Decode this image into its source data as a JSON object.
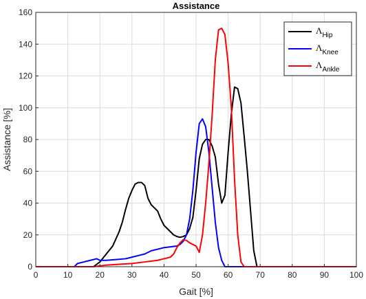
{
  "chart_data": {
    "type": "line",
    "title": "Assistance",
    "xlabel": "Gait [%]",
    "ylabel": "Assistance [%]",
    "xlim": [
      0,
      100
    ],
    "ylim": [
      0,
      160
    ],
    "xticks": [
      0,
      10,
      20,
      30,
      40,
      50,
      60,
      70,
      80,
      90,
      100
    ],
    "yticks": [
      0,
      20,
      40,
      60,
      80,
      100,
      120,
      140,
      160
    ],
    "grid": true,
    "legend_position": "top-right",
    "series": [
      {
        "name": "Λ",
        "name_sub": "Hip",
        "color": "#000000",
        "points": [
          [
            0,
            0
          ],
          [
            18,
            0
          ],
          [
            20,
            3
          ],
          [
            22,
            8
          ],
          [
            24,
            13
          ],
          [
            26,
            22
          ],
          [
            27,
            28
          ],
          [
            28,
            36
          ],
          [
            29,
            43
          ],
          [
            30,
            48
          ],
          [
            31,
            52
          ],
          [
            32,
            53
          ],
          [
            33,
            53
          ],
          [
            34,
            51
          ],
          [
            35,
            43
          ],
          [
            36,
            39
          ],
          [
            37,
            37
          ],
          [
            38,
            35
          ],
          [
            39,
            30
          ],
          [
            40,
            26
          ],
          [
            41,
            24
          ],
          [
            42,
            22
          ],
          [
            43,
            20
          ],
          [
            44,
            19
          ],
          [
            45,
            18.5
          ],
          [
            46,
            19
          ],
          [
            47,
            20
          ],
          [
            48,
            24
          ],
          [
            49,
            31
          ],
          [
            50,
            48
          ],
          [
            51,
            68
          ],
          [
            52,
            77
          ],
          [
            53,
            80
          ],
          [
            54,
            80
          ],
          [
            55,
            76
          ],
          [
            56,
            69
          ],
          [
            57,
            52
          ],
          [
            58,
            40
          ],
          [
            59,
            45
          ],
          [
            60,
            72
          ],
          [
            61,
            96
          ],
          [
            62,
            113
          ],
          [
            63,
            112
          ],
          [
            64,
            103
          ],
          [
            65,
            82
          ],
          [
            66,
            60
          ],
          [
            67,
            35
          ],
          [
            68,
            10
          ],
          [
            69,
            0
          ],
          [
            100,
            0
          ]
        ]
      },
      {
        "name": "Λ",
        "name_sub": "Knee",
        "color": "#0000ff",
        "points": [
          [
            0,
            0
          ],
          [
            12,
            0
          ],
          [
            13,
            2
          ],
          [
            15,
            3
          ],
          [
            17,
            4
          ],
          [
            19,
            5
          ],
          [
            20,
            4
          ],
          [
            22,
            4
          ],
          [
            25,
            4.5
          ],
          [
            28,
            5
          ],
          [
            30,
            6
          ],
          [
            32,
            7
          ],
          [
            34,
            8
          ],
          [
            36,
            10
          ],
          [
            38,
            11
          ],
          [
            40,
            12
          ],
          [
            42,
            12.5
          ],
          [
            44,
            13
          ],
          [
            45,
            14
          ],
          [
            46,
            16
          ],
          [
            47,
            20
          ],
          [
            48,
            30
          ],
          [
            49,
            48
          ],
          [
            50,
            72
          ],
          [
            51,
            90
          ],
          [
            52,
            93
          ],
          [
            53,
            88
          ],
          [
            54,
            72
          ],
          [
            55,
            50
          ],
          [
            56,
            28
          ],
          [
            57,
            12
          ],
          [
            58,
            4
          ],
          [
            59,
            0
          ],
          [
            100,
            0
          ]
        ]
      },
      {
        "name": "Λ",
        "name_sub": "Ankle",
        "color": "#ff0000",
        "points": [
          [
            0,
            0
          ],
          [
            18,
            0
          ],
          [
            22,
            1
          ],
          [
            26,
            1.5
          ],
          [
            30,
            2
          ],
          [
            34,
            3
          ],
          [
            38,
            4
          ],
          [
            40,
            5
          ],
          [
            42,
            6
          ],
          [
            43,
            8
          ],
          [
            44,
            12
          ],
          [
            45,
            15
          ],
          [
            46,
            17
          ],
          [
            47,
            16.5
          ],
          [
            48,
            15
          ],
          [
            50,
            13
          ],
          [
            51,
            9
          ],
          [
            52,
            20
          ],
          [
            53,
            40
          ],
          [
            54,
            65
          ],
          [
            55,
            95
          ],
          [
            56,
            130
          ],
          [
            57,
            149
          ],
          [
            58,
            150
          ],
          [
            59,
            146
          ],
          [
            60,
            128
          ],
          [
            61,
            100
          ],
          [
            62,
            55
          ],
          [
            63,
            20
          ],
          [
            64,
            3
          ],
          [
            65,
            0
          ],
          [
            100,
            0
          ]
        ]
      }
    ]
  }
}
